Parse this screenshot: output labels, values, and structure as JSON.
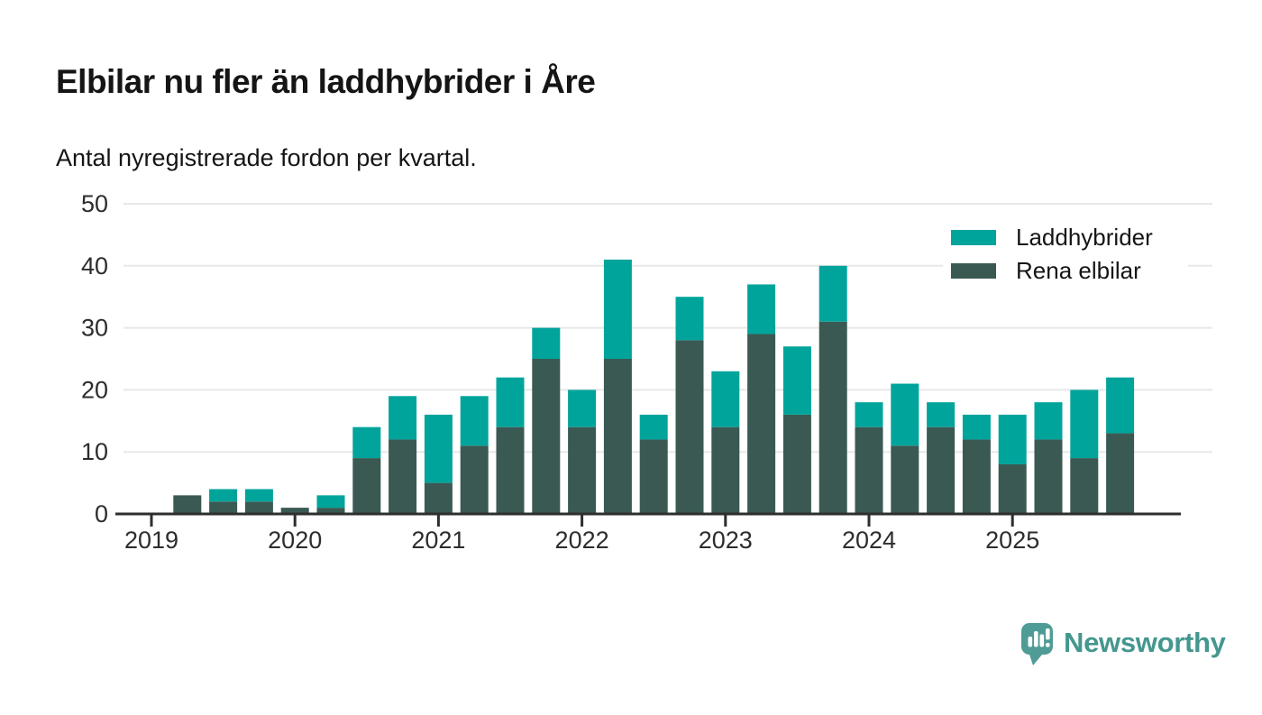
{
  "header": {
    "title": "Elbilar nu fler än laddhybrider i Åre",
    "subtitle": "Antal nyregistrerade fordon per kvartal."
  },
  "chart_data": {
    "type": "bar",
    "stacked": true,
    "title": "Elbilar nu fler än laddhybrider i Åre",
    "subtitle": "Antal nyregistrerade fordon per kvartal.",
    "categories": [
      "2019 Q1",
      "2019 Q2",
      "2019 Q3",
      "2019 Q4",
      "2020 Q1",
      "2020 Q2",
      "2020 Q3",
      "2020 Q4",
      "2021 Q1",
      "2021 Q2",
      "2021 Q3",
      "2021 Q4",
      "2022 Q1",
      "2022 Q2",
      "2022 Q3",
      "2022 Q4",
      "2023 Q1",
      "2023 Q2",
      "2023 Q3",
      "2023 Q4",
      "2024 Q1",
      "2024 Q2",
      "2024 Q3",
      "2024 Q4",
      "2025 Q1",
      "2025 Q2",
      "2025 Q3",
      "2025 Q4"
    ],
    "series": [
      {
        "name": "Rena elbilar",
        "color": "#3a5953",
        "values": [
          0,
          3,
          2,
          2,
          1,
          1,
          9,
          12,
          5,
          11,
          14,
          25,
          14,
          25,
          12,
          28,
          14,
          29,
          16,
          31,
          14,
          11,
          14,
          12,
          8,
          12,
          9,
          13
        ]
      },
      {
        "name": "Laddhybrider",
        "color": "#00a49b",
        "values": [
          0,
          0,
          2,
          2,
          0,
          2,
          5,
          7,
          11,
          8,
          8,
          5,
          6,
          16,
          4,
          7,
          9,
          8,
          11,
          9,
          4,
          10,
          4,
          4,
          8,
          6,
          11,
          9
        ]
      }
    ],
    "legend": [
      {
        "label": "Laddhybrider",
        "color": "#00a49b"
      },
      {
        "label": "Rena elbilar",
        "color": "#3a5953"
      }
    ],
    "legend_position": "top-right",
    "x_tick_labels": [
      "2019",
      "2020",
      "2021",
      "2022",
      "2023",
      "2024",
      "2025"
    ],
    "y_ticks": [
      0,
      10,
      20,
      30,
      40,
      50
    ],
    "ylim": [
      0,
      50
    ],
    "grid": true,
    "xlabel": "",
    "ylabel": ""
  },
  "footer": {
    "brand": "Newsworthy"
  },
  "colors": {
    "accent_teal": "#00a49b",
    "dark_teal": "#3a5953",
    "axis": "#2e2e2e",
    "grid": "#e8e8e8",
    "title_text": "#151515",
    "tick_text": "#2d2d2d",
    "logo_bubble": "#4f9c96",
    "brand_text": "#44978f"
  }
}
